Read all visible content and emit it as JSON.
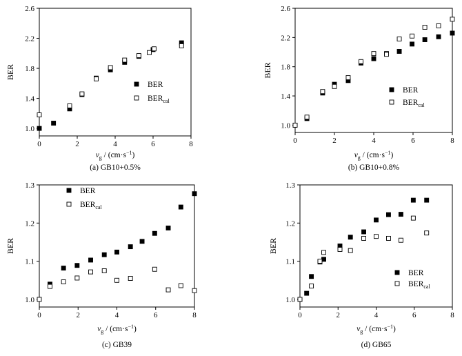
{
  "chart_data": [
    {
      "type": "scatter",
      "caption": "(a) GB10+0.5%",
      "ylabel": "BER",
      "xlabel": {
        "var": "v",
        "sub": "g",
        "unit": " / (cm·s",
        "exp": "−1",
        "close": ")"
      },
      "xlim": [
        0,
        8
      ],
      "ylim": [
        0.9,
        2.6
      ],
      "xticks": [
        "0",
        "2",
        "4",
        "6",
        "8"
      ],
      "yticks": [
        "1.0",
        "1.4",
        "1.8",
        "2.2",
        "2.6"
      ],
      "series": [
        {
          "name": "BER",
          "sub": "",
          "marker": "filled-square",
          "x": [
            0.0,
            0.75,
            1.6,
            2.25,
            3.0,
            3.75,
            4.5,
            5.25,
            6.0,
            7.5
          ],
          "y": [
            1.0,
            1.07,
            1.26,
            1.45,
            1.67,
            1.78,
            1.88,
            1.96,
            2.05,
            2.14
          ]
        },
        {
          "name": "BER",
          "sub": "cal",
          "marker": "open-square",
          "x": [
            0.0,
            1.6,
            2.25,
            3.0,
            3.75,
            4.5,
            5.25,
            5.8,
            6.05,
            7.5
          ],
          "y": [
            1.18,
            1.3,
            1.46,
            1.66,
            1.81,
            1.91,
            1.97,
            2.01,
            2.06,
            2.1
          ]
        }
      ],
      "legend": "right-middle"
    },
    {
      "type": "scatter",
      "caption": "(b) GB10+0.8%",
      "ylabel": "BER",
      "xlabel": {
        "var": "v",
        "sub": "g",
        "unit": " / (cm·s",
        "exp": "−1",
        "close": ")"
      },
      "xlim": [
        0,
        8
      ],
      "ylim": [
        0.9,
        2.6
      ],
      "xticks": [
        "0",
        "2",
        "4",
        "6",
        "8"
      ],
      "yticks": [
        "1.0",
        "1.4",
        "1.8",
        "2.2",
        "2.6"
      ],
      "series": [
        {
          "name": "BER",
          "sub": "",
          "marker": "filled-square",
          "x": [
            0.0,
            0.6,
            1.4,
            2.0,
            2.7,
            3.35,
            4.0,
            4.65,
            5.3,
            5.95,
            6.6,
            7.3,
            8.0
          ],
          "y": [
            1.0,
            1.09,
            1.44,
            1.56,
            1.61,
            1.85,
            1.91,
            1.98,
            2.01,
            2.11,
            2.17,
            2.21,
            2.26
          ]
        },
        {
          "name": "BER",
          "sub": "cal",
          "marker": "open-square",
          "x": [
            0.0,
            0.6,
            1.4,
            2.0,
            2.7,
            3.35,
            4.0,
            4.65,
            5.3,
            5.95,
            6.6,
            7.3,
            8.0
          ],
          "y": [
            1.0,
            1.11,
            1.46,
            1.53,
            1.65,
            1.87,
            1.98,
            1.97,
            2.18,
            2.22,
            2.34,
            2.36,
            2.45
          ]
        }
      ],
      "legend": "right-middle"
    },
    {
      "type": "scatter",
      "caption": "(c) GB39",
      "ylabel": "BER",
      "xlabel": {
        "var": "v",
        "sub": "g",
        "unit": " / (cm·s",
        "exp": "−1",
        "close": ")"
      },
      "xlim": [
        0,
        8
      ],
      "ylim": [
        0.98,
        1.3
      ],
      "xticks": [
        "0",
        "2",
        "4",
        "6",
        "8"
      ],
      "yticks": [
        "1.0",
        "1.1",
        "1.2",
        "1.3"
      ],
      "series": [
        {
          "name": "BER",
          "sub": "",
          "marker": "filled-square",
          "x": [
            0.55,
            1.25,
            1.95,
            2.65,
            3.35,
            4.0,
            4.7,
            5.3,
            5.95,
            6.65,
            7.3,
            8.0
          ],
          "y": [
            1.04,
            1.082,
            1.089,
            1.103,
            1.117,
            1.124,
            1.138,
            1.152,
            1.173,
            1.187,
            1.242,
            1.277
          ]
        },
        {
          "name": "BER",
          "sub": "cal",
          "marker": "open-square",
          "x": [
            0.0,
            0.55,
            1.25,
            1.95,
            2.65,
            3.35,
            4.0,
            4.7,
            5.95,
            6.65,
            7.3,
            8.0
          ],
          "y": [
            1.0,
            1.034,
            1.046,
            1.056,
            1.072,
            1.075,
            1.05,
            1.055,
            1.079,
            1.025,
            1.036,
            1.023
          ]
        }
      ],
      "legend": "left-top"
    },
    {
      "type": "scatter",
      "caption": "(d) GB65",
      "ylabel": "BER",
      "xlabel": {
        "var": "v",
        "sub": "g",
        "unit": " / (cm·s",
        "exp": "−1",
        "close": ")"
      },
      "xlim": [
        0,
        8
      ],
      "ylim": [
        0.98,
        1.3
      ],
      "xticks": [
        "0",
        "2",
        "4",
        "6",
        "8"
      ],
      "yticks": [
        "1.0",
        "1.1",
        "1.2",
        "1.3"
      ],
      "series": [
        {
          "name": "BER",
          "sub": "",
          "marker": "filled-square",
          "x": [
            0.0,
            0.35,
            0.6,
            1.05,
            1.25,
            2.1,
            2.65,
            3.35,
            4.0,
            4.65,
            5.3,
            5.95,
            6.65
          ],
          "y": [
            1.0,
            1.016,
            1.06,
            1.098,
            1.105,
            1.14,
            1.163,
            1.177,
            1.208,
            1.222,
            1.223,
            1.26,
            1.26
          ]
        },
        {
          "name": "BER",
          "sub": "cal",
          "marker": "open-square",
          "x": [
            0.0,
            0.6,
            1.05,
            1.25,
            2.1,
            2.65,
            3.35,
            4.0,
            4.65,
            5.3,
            5.95,
            6.65
          ],
          "y": [
            1.0,
            1.035,
            1.1,
            1.123,
            1.131,
            1.128,
            1.16,
            1.165,
            1.16,
            1.155,
            1.213,
            1.174
          ]
        }
      ],
      "legend": "right-bottom"
    }
  ]
}
